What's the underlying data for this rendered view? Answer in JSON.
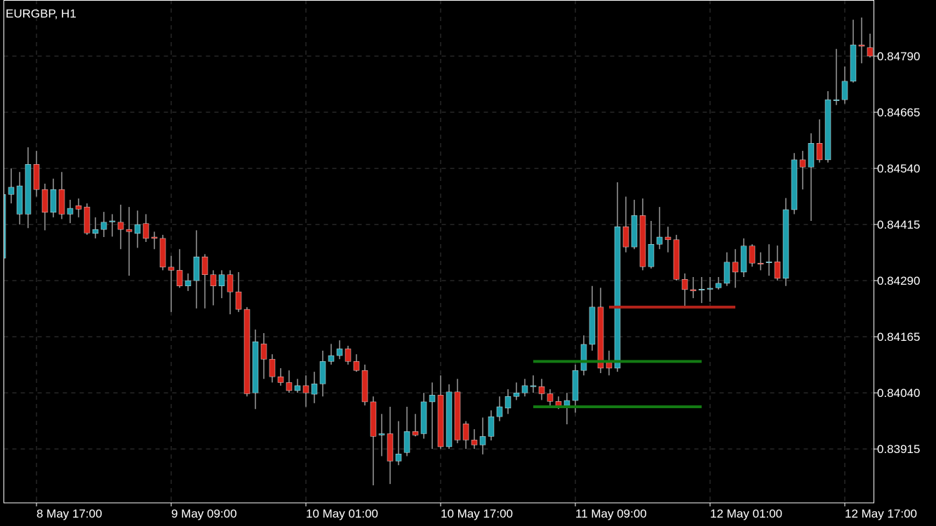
{
  "chart_data": {
    "type": "candlestick",
    "title": "EURGBP, H1",
    "categories": [
      null,
      null,
      null,
      null,
      "8 May 17:00",
      null,
      null,
      null,
      null,
      null,
      null,
      null,
      null,
      null,
      null,
      null,
      null,
      null,
      null,
      null,
      "9 May 09:00",
      null,
      null,
      null,
      null,
      null,
      null,
      null,
      null,
      null,
      null,
      null,
      null,
      null,
      null,
      null,
      "10 May 01:00",
      null,
      null,
      null,
      null,
      null,
      null,
      null,
      null,
      null,
      null,
      null,
      null,
      null,
      null,
      null,
      "10 May 17:00",
      null,
      null,
      null,
      null,
      null,
      null,
      null,
      null,
      null,
      null,
      null,
      null,
      null,
      null,
      null,
      "11 May 09:00",
      null,
      null,
      null,
      null,
      null,
      null,
      null,
      null,
      null,
      null,
      null,
      null,
      null,
      null,
      null,
      "12 May 01:00",
      null,
      null,
      null,
      null,
      null,
      null,
      null,
      null,
      null,
      null,
      null,
      null,
      null,
      null,
      null,
      "12 May 17:00",
      null,
      null,
      null
    ],
    "open": [
      0.8434,
      0.84482,
      0.84438,
      0.84438,
      0.84549,
      0.84493,
      0.84442,
      0.84493,
      0.84438,
      0.84457,
      0.84454,
      0.84395,
      0.84404,
      0.84421,
      0.8442,
      0.84404,
      0.84395,
      0.84417,
      0.84387,
      0.84384,
      0.8432,
      0.84313,
      0.84278,
      0.8429,
      0.84343,
      0.84303,
      0.84278,
      0.84303,
      0.84265,
      0.84226,
      0.8404,
      0.84149,
      0.84115,
      0.84076,
      0.84063,
      0.84045,
      0.84056,
      0.84037,
      0.8406,
      0.8411,
      0.84123,
      0.84138,
      0.8411,
      0.8409,
      0.8402,
      0.83946,
      0.83949,
      0.83888,
      0.83907,
      0.83954,
      0.83949,
      0.8402,
      0.84035,
      0.8392,
      0.84042,
      0.83971,
      0.83935,
      0.83924,
      0.83943,
      0.83987,
      0.84006,
      0.84032,
      0.8404,
      0.84054,
      0.84054,
      0.84038,
      0.84021,
      0.84012,
      0.84023,
      0.8409,
      0.84148,
      0.84231,
      0.84107,
      0.84095,
      0.8441,
      0.84365,
      0.84435,
      0.84321,
      0.84371,
      0.84387,
      0.84381,
      0.84293,
      0.8427,
      0.8427,
      0.84271,
      0.84274,
      0.84284,
      0.84331,
      0.84309,
      0.84367,
      0.84329,
      0.84331,
      0.84332,
      0.84295,
      0.84448,
      0.84559,
      0.84543,
      0.84596,
      0.84559,
      0.84692,
      0.84693,
      0.84734,
      0.84815,
      0.84809
    ],
    "high": [
      0.84493,
      0.8454,
      0.84532,
      0.84587,
      0.84579,
      0.84506,
      0.84517,
      0.84532,
      0.8447,
      0.84473,
      0.84462,
      0.84431,
      0.84443,
      0.84438,
      0.84459,
      0.84454,
      0.84446,
      0.84438,
      0.84399,
      0.84392,
      0.84345,
      0.8436,
      0.84306,
      0.84402,
      0.84349,
      0.84313,
      0.84313,
      0.84313,
      0.84309,
      0.84231,
      0.84181,
      0.84173,
      0.84126,
      0.84095,
      0.8409,
      0.84071,
      0.84079,
      0.84087,
      0.84134,
      0.84149,
      0.84157,
      0.84145,
      0.84126,
      0.84103,
      0.84032,
      0.83993,
      0.84009,
      0.83977,
      0.84009,
      0.83993,
      0.8404,
      0.84063,
      0.84079,
      0.84059,
      0.84071,
      0.83977,
      0.83959,
      0.83985,
      0.84001,
      0.84032,
      0.84048,
      0.84063,
      0.84071,
      0.84079,
      0.84071,
      0.84048,
      0.84032,
      0.8404,
      0.84103,
      0.84168,
      0.84278,
      0.84274,
      0.84134,
      0.84509,
      0.84477,
      0.8447,
      0.84473,
      0.84423,
      0.84454,
      0.8441,
      0.84392,
      0.84306,
      0.84298,
      0.84298,
      0.84298,
      0.84298,
      0.84353,
      0.8436,
      0.84384,
      0.84371,
      0.84353,
      0.84371,
      0.84368,
      0.84474,
      0.84574,
      0.84579,
      0.84618,
      0.84649,
      0.84712,
      0.84806,
      0.84767,
      0.84871,
      0.84876,
      0.8484
    ],
    "low": [
      0.8434,
      0.84462,
      0.84415,
      0.84407,
      0.84477,
      0.84402,
      0.84431,
      0.84427,
      0.84418,
      0.84431,
      0.84392,
      0.84384,
      0.84387,
      0.84388,
      0.8436,
      0.84301,
      0.84363,
      0.84376,
      0.8436,
      0.84313,
      0.8422,
      0.84274,
      0.84267,
      0.84228,
      0.84228,
      0.84235,
      0.84251,
      0.84215,
      0.8422,
      0.84032,
      0.84004,
      0.84071,
      0.84063,
      0.84056,
      0.8404,
      0.8404,
      0.84009,
      0.84017,
      0.84032,
      0.84103,
      0.84115,
      0.84103,
      0.84087,
      0.84012,
      0.83834,
      0.83899,
      0.83837,
      0.83879,
      0.83899,
      0.83943,
      0.83938,
      0.83915,
      0.83915,
      0.83915,
      0.83928,
      0.83915,
      0.83915,
      0.83903,
      0.83934,
      0.83977,
      0.83993,
      0.84024,
      0.84032,
      0.8404,
      0.84024,
      0.84009,
      0.84004,
      0.8397,
      0.83996,
      0.84079,
      0.84134,
      0.84084,
      0.84079,
      0.84087,
      0.84353,
      0.8436,
      0.84313,
      0.84317,
      0.8436,
      0.84353,
      0.8429,
      0.84228,
      0.84251,
      0.8424,
      0.84243,
      0.8427,
      0.84278,
      0.84274,
      0.84298,
      0.84321,
      0.84313,
      0.84301,
      0.8429,
      0.84278,
      0.84438,
      0.84493,
      0.84423,
      0.84553,
      0.84553,
      0.84681,
      0.84684,
      0.84731,
      0.84774,
      0.84787
    ],
    "close": [
      0.84482,
      0.84498,
      0.84501,
      0.84549,
      0.84493,
      0.84442,
      0.84493,
      0.84438,
      0.84451,
      0.84449,
      0.84396,
      0.84404,
      0.8442,
      0.84423,
      0.84404,
      0.84399,
      0.84415,
      0.84384,
      0.84384,
      0.8432,
      0.84313,
      0.84278,
      0.8429,
      0.84343,
      0.84303,
      0.84278,
      0.84303,
      0.84265,
      0.84226,
      0.84038,
      0.84154,
      0.84115,
      0.84076,
      0.84063,
      0.84045,
      0.84056,
      0.8404,
      0.8406,
      0.8411,
      0.84123,
      0.84138,
      0.8411,
      0.8409,
      0.8402,
      0.83943,
      0.83949,
      0.83888,
      0.83904,
      0.83954,
      0.83946,
      0.8402,
      0.84035,
      0.8392,
      0.84042,
      0.83935,
      0.83935,
      0.83924,
      0.83943,
      0.83987,
      0.84009,
      0.84032,
      0.8404,
      0.84056,
      0.84056,
      0.84038,
      0.84021,
      0.84009,
      0.84023,
      0.8409,
      0.84148,
      0.84231,
      0.84095,
      0.84095,
      0.8441,
      0.84365,
      0.84435,
      0.84321,
      0.84371,
      0.84387,
      0.84381,
      0.84293,
      0.8427,
      0.84267,
      0.84271,
      0.84273,
      0.84284,
      0.84331,
      0.84309,
      0.84367,
      0.84329,
      0.84328,
      0.84332,
      0.84295,
      0.84448,
      0.84559,
      0.84543,
      0.84596,
      0.84559,
      0.84693,
      0.84693,
      0.84734,
      0.84815,
      0.84812,
      0.8479
    ],
    "up_color": "#1f9fae",
    "down_color": "#d7261c",
    "wick_color": "#e8e8e8",
    "levels": [
      {
        "value": 0.84231,
        "color": "#b3231a",
        "from": 72,
        "to": 87
      },
      {
        "value": 0.8411,
        "color": "#137a13",
        "from": 63,
        "to": 83
      },
      {
        "value": 0.84009,
        "color": "#137a13",
        "from": 63,
        "to": 83
      }
    ],
    "ylim": [
      0.83795,
      0.84915
    ],
    "yticks": [
      0.83915,
      {
        "value": 0.8404,
        "label": "0.84040"
      },
      0.84165,
      {
        "value": 0.8429,
        "label": "0.84290"
      },
      0.84415,
      {
        "value": 0.8454,
        "label": "0.84540"
      },
      0.84665,
      {
        "value": 0.8479,
        "label": "0.84790"
      }
    ],
    "grid": true
  }
}
